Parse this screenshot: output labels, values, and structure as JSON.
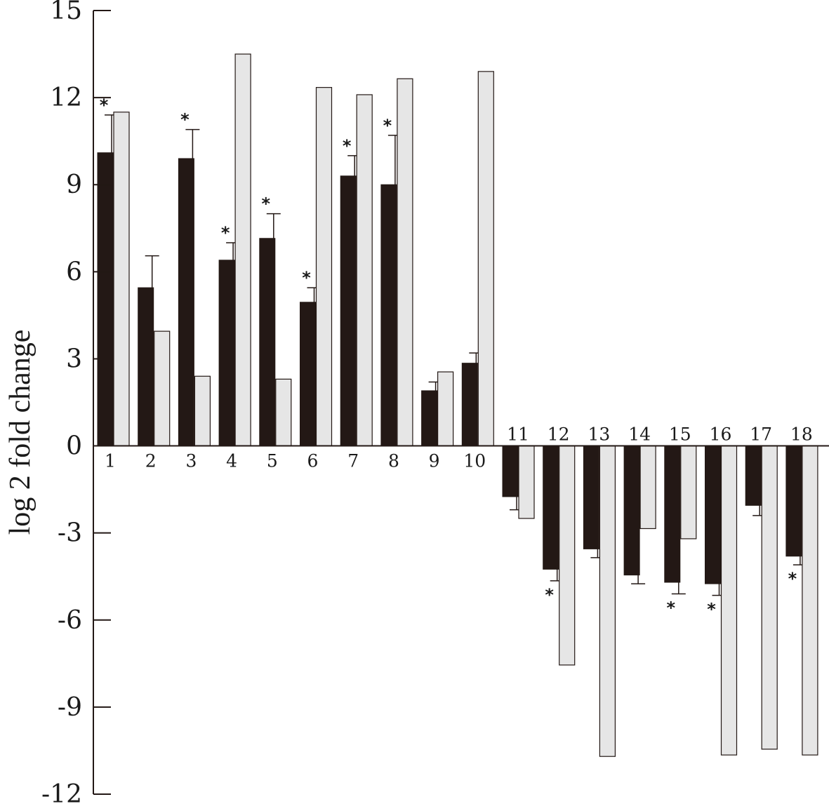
{
  "chart_data": {
    "type": "bar",
    "title": "",
    "xlabel": "",
    "ylabel": "log 2 fold change",
    "ylim": [
      -12,
      15
    ],
    "yticks": [
      15,
      12,
      9,
      6,
      3,
      0,
      -3,
      -6,
      -9,
      -12
    ],
    "ytick_labels": [
      "15",
      "12",
      "9",
      "6",
      "3",
      "0",
      "-3",
      "-6",
      "-9",
      "-12"
    ],
    "grid": false,
    "legend": "none",
    "categories": [
      "1",
      "2",
      "3",
      "4",
      "5",
      "6",
      "7",
      "8",
      "9",
      "10",
      "11",
      "12",
      "13",
      "14",
      "15",
      "16",
      "17",
      "18"
    ],
    "significance_marker": "*",
    "series": [
      {
        "color": "#231815",
        "values": [
          10.1,
          5.45,
          9.9,
          6.4,
          7.15,
          4.95,
          9.3,
          9.0,
          1.9,
          2.85,
          -1.75,
          -4.25,
          -3.55,
          -4.45,
          -4.7,
          -4.75,
          -2.05,
          -3.8
        ],
        "errors": [
          1.3,
          1.1,
          1.0,
          0.6,
          0.85,
          0.5,
          0.7,
          1.7,
          0.3,
          0.35,
          0.45,
          0.4,
          0.3,
          0.3,
          0.4,
          0.4,
          0.35,
          0.3
        ],
        "significant": [
          true,
          false,
          true,
          true,
          true,
          true,
          true,
          true,
          false,
          false,
          false,
          true,
          false,
          false,
          true,
          true,
          false,
          true
        ]
      },
      {
        "color": "#e6e6e6",
        "values": [
          11.5,
          3.95,
          2.4,
          13.5,
          2.3,
          12.35,
          12.1,
          12.65,
          2.55,
          12.9,
          -2.5,
          -7.55,
          -10.7,
          -2.85,
          -3.2,
          -10.65,
          -10.45,
          -10.65
        ]
      }
    ]
  }
}
